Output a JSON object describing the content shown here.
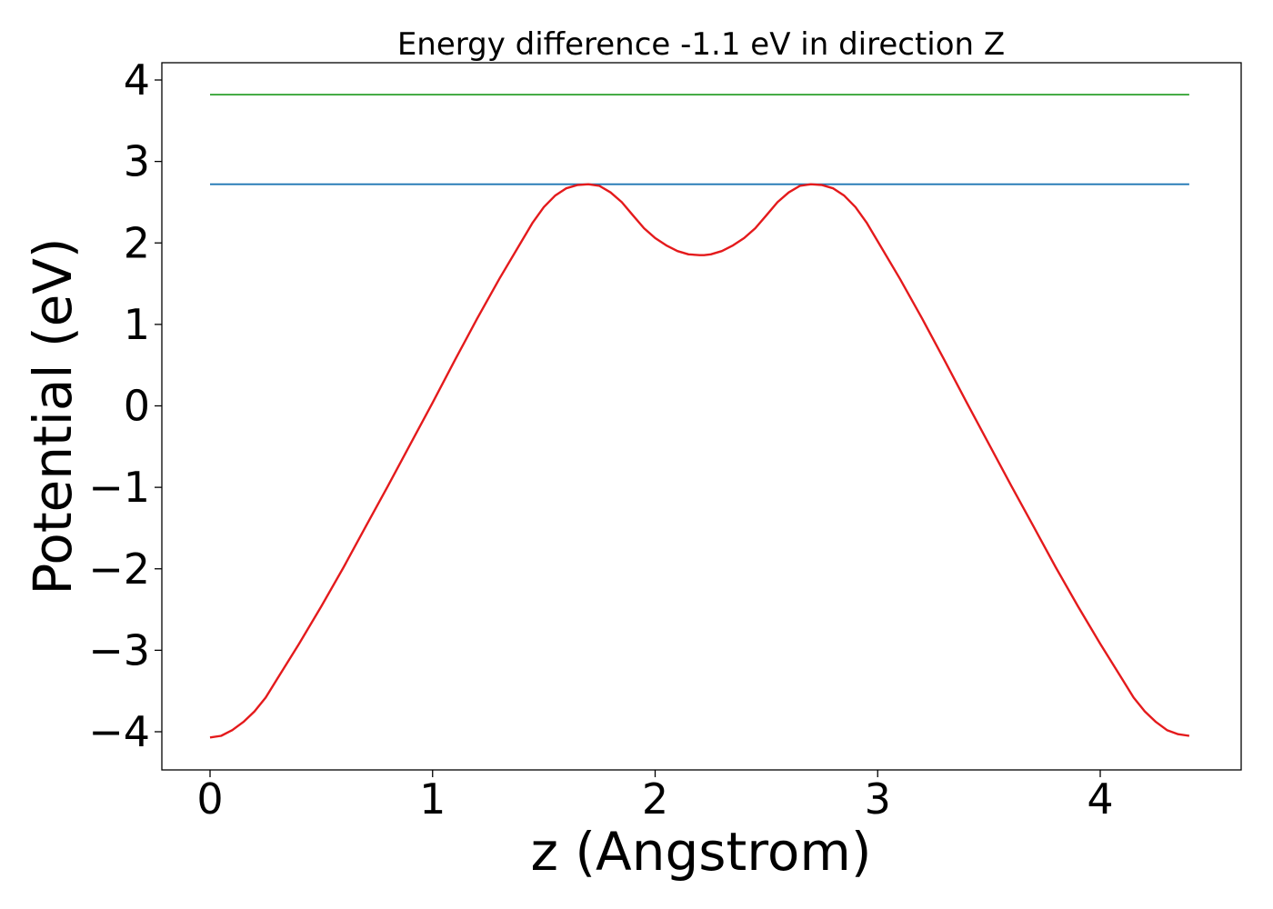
{
  "chart_data": {
    "type": "line",
    "title": "Energy difference -1.1 eV in direction Z",
    "xlabel": "z (Angstrom)",
    "ylabel": "Potential (eV)",
    "xlim": [
      -0.22,
      4.4
    ],
    "ylim": [
      -4.45,
      4.22
    ],
    "xticks": [
      0,
      1,
      2,
      3,
      4
    ],
    "xtick_labels": [
      "0",
      "1",
      "2",
      "3",
      "4"
    ],
    "yticks": [
      -4,
      -3,
      -2,
      -1,
      0,
      1,
      2,
      3,
      4
    ],
    "ytick_labels": [
      "−4",
      "−3",
      "−2",
      "−1",
      "0",
      "1",
      "2",
      "3",
      "4"
    ],
    "grid": false,
    "series": [
      {
        "color": "#2ca02c",
        "x": [
          0,
          4.4
        ],
        "y": [
          3.82,
          3.82
        ]
      },
      {
        "color": "#1f77b4",
        "x": [
          0,
          4.4
        ],
        "y": [
          2.72,
          2.72
        ]
      },
      {
        "color": "#e41a1c",
        "x": [
          0,
          0.05,
          0.1,
          0.15,
          0.2,
          0.25,
          0.3,
          0.4,
          0.5,
          0.6,
          0.7,
          0.8,
          0.9,
          1.0,
          1.1,
          1.2,
          1.3,
          1.4,
          1.45,
          1.5,
          1.55,
          1.6,
          1.65,
          1.7,
          1.75,
          1.8,
          1.85,
          1.9,
          1.95,
          2.0,
          2.05,
          2.1,
          2.15,
          2.2,
          2.22,
          2.25,
          2.3,
          2.35,
          2.4,
          2.45,
          2.5,
          2.55,
          2.6,
          2.65,
          2.7,
          2.75,
          2.8,
          2.85,
          2.9,
          2.95,
          3.0,
          3.1,
          3.2,
          3.3,
          3.4,
          3.5,
          3.6,
          3.7,
          3.8,
          3.9,
          4.0,
          4.1,
          4.15,
          4.2,
          4.25,
          4.3,
          4.35,
          4.4
        ],
        "y": [
          -4.07,
          -4.05,
          -3.98,
          -3.88,
          -3.75,
          -3.58,
          -3.36,
          -2.92,
          -2.46,
          -1.98,
          -1.48,
          -0.98,
          -0.47,
          0.04,
          0.56,
          1.07,
          1.56,
          2.02,
          2.25,
          2.44,
          2.58,
          2.67,
          2.71,
          2.72,
          2.7,
          2.62,
          2.5,
          2.34,
          2.18,
          2.06,
          1.97,
          1.9,
          1.86,
          1.85,
          1.85,
          1.86,
          1.9,
          1.97,
          2.06,
          2.18,
          2.34,
          2.5,
          2.62,
          2.7,
          2.72,
          2.71,
          2.67,
          2.58,
          2.44,
          2.25,
          2.02,
          1.56,
          1.07,
          0.56,
          0.04,
          -0.47,
          -0.98,
          -1.48,
          -1.98,
          -2.46,
          -2.92,
          -3.36,
          -3.58,
          -3.75,
          -3.88,
          -3.98,
          -4.03,
          -4.05
        ]
      }
    ]
  }
}
